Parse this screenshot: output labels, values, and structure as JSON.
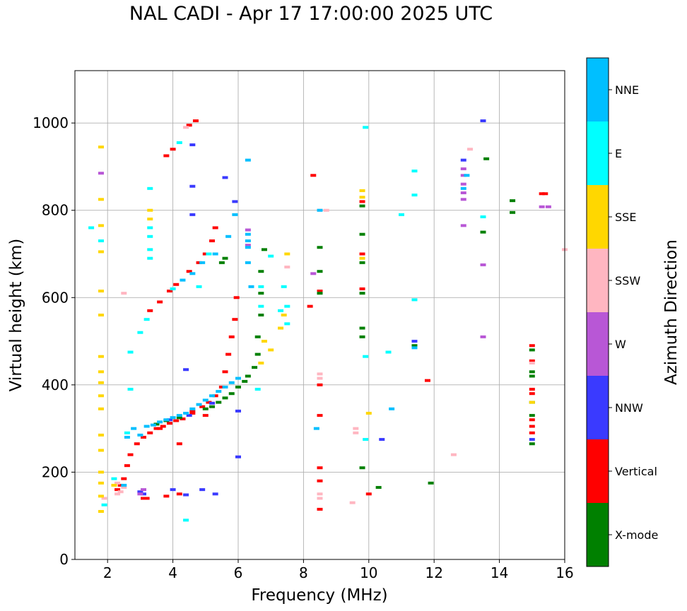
{
  "chart_data": {
    "type": "scatter",
    "title": "NAL CADI - Apr 17 17:00:00 2025 UTC",
    "xlabel": "Frequency (MHz)",
    "ylabel": "Virtual height (km)",
    "xlim": [
      1,
      16
    ],
    "ylim": [
      0,
      1120
    ],
    "xticks": [
      2,
      4,
      6,
      8,
      10,
      12,
      14,
      16
    ],
    "yticks": [
      0,
      200,
      400,
      600,
      800,
      1000
    ],
    "grid": true,
    "colorbar": {
      "label": "Azimuth Direction",
      "categories": [
        {
          "name": "X-mode",
          "color": "#008000"
        },
        {
          "name": "Vertical",
          "color": "#ff0000"
        },
        {
          "name": "NNW",
          "color": "#3a3aff"
        },
        {
          "name": "W",
          "color": "#b857d6"
        },
        {
          "name": "SSW",
          "color": "#ffb6c1"
        },
        {
          "name": "SSE",
          "color": "#ffd700"
        },
        {
          "name": "E",
          "color": "#00ffff"
        },
        {
          "name": "NNE",
          "color": "#00bfff"
        }
      ]
    },
    "series": [
      {
        "name": "Vertical",
        "color": "#ff0000",
        "points": [
          [
            2.3,
            160
          ],
          [
            2.4,
            170
          ],
          [
            2.5,
            185
          ],
          [
            2.6,
            215
          ],
          [
            2.7,
            240
          ],
          [
            2.9,
            265
          ],
          [
            3.1,
            280
          ],
          [
            3.3,
            290
          ],
          [
            3.5,
            300
          ],
          [
            3.7,
            305
          ],
          [
            3.9,
            312
          ],
          [
            4.1,
            318
          ],
          [
            4.3,
            322
          ],
          [
            4.6,
            335
          ],
          [
            4.9,
            350
          ],
          [
            5.1,
            360
          ],
          [
            5.3,
            375
          ],
          [
            5.5,
            395
          ],
          [
            5.6,
            430
          ],
          [
            5.7,
            470
          ],
          [
            5.8,
            510
          ],
          [
            5.9,
            550
          ],
          [
            5.95,
            600
          ],
          [
            3.1,
            140
          ],
          [
            3.2,
            140
          ],
          [
            3.8,
            145
          ],
          [
            4.2,
            150
          ],
          [
            3.3,
            570
          ],
          [
            3.6,
            590
          ],
          [
            3.9,
            615
          ],
          [
            4.1,
            630
          ],
          [
            4.5,
            660
          ],
          [
            4.8,
            680
          ],
          [
            5.0,
            700
          ],
          [
            5.2,
            730
          ],
          [
            5.3,
            760
          ],
          [
            3.8,
            925
          ],
          [
            4.0,
            940
          ],
          [
            4.5,
            995
          ],
          [
            4.7,
            1005
          ],
          [
            8.2,
            580
          ],
          [
            8.3,
            880
          ],
          [
            8.5,
            615
          ],
          [
            8.5,
            400
          ],
          [
            8.5,
            330
          ],
          [
            8.5,
            210
          ],
          [
            8.5,
            180
          ],
          [
            8.5,
            115
          ],
          [
            9.8,
            820
          ],
          [
            9.8,
            700
          ],
          [
            9.8,
            620
          ],
          [
            10.0,
            150
          ],
          [
            11.8,
            410
          ],
          [
            15.0,
            490
          ],
          [
            15.0,
            455
          ],
          [
            15.0,
            390
          ],
          [
            15.0,
            380
          ],
          [
            15.0,
            320
          ],
          [
            15.0,
            305
          ],
          [
            15.0,
            290
          ],
          [
            15.3,
            838
          ],
          [
            15.4,
            838
          ],
          [
            4.2,
            265
          ],
          [
            3.6,
            300
          ],
          [
            4.6,
            340
          ],
          [
            5.0,
            330
          ]
        ]
      },
      {
        "name": "X-mode",
        "color": "#008000",
        "points": [
          [
            5.0,
            345
          ],
          [
            5.2,
            350
          ],
          [
            5.4,
            360
          ],
          [
            5.6,
            370
          ],
          [
            5.8,
            380
          ],
          [
            6.0,
            395
          ],
          [
            6.2,
            408
          ],
          [
            6.3,
            420
          ],
          [
            6.5,
            440
          ],
          [
            6.6,
            470
          ],
          [
            6.6,
            510
          ],
          [
            6.7,
            560
          ],
          [
            6.7,
            610
          ],
          [
            6.7,
            660
          ],
          [
            6.8,
            710
          ],
          [
            3.5,
            310
          ],
          [
            3.8,
            318
          ],
          [
            4.2,
            325
          ],
          [
            8.5,
            660
          ],
          [
            8.5,
            715
          ],
          [
            8.5,
            610
          ],
          [
            9.8,
            810
          ],
          [
            9.8,
            745
          ],
          [
            9.8,
            680
          ],
          [
            9.8,
            610
          ],
          [
            9.8,
            530
          ],
          [
            9.8,
            510
          ],
          [
            9.8,
            210
          ],
          [
            10.3,
            165
          ],
          [
            11.4,
            490
          ],
          [
            11.9,
            175
          ],
          [
            13.5,
            750
          ],
          [
            13.6,
            918
          ],
          [
            14.4,
            822
          ],
          [
            14.4,
            795
          ],
          [
            15.0,
            480
          ],
          [
            15.0,
            430
          ],
          [
            15.0,
            420
          ],
          [
            15.0,
            360
          ],
          [
            15.0,
            330
          ],
          [
            15.0,
            265
          ],
          [
            5.5,
            680
          ],
          [
            5.6,
            690
          ]
        ]
      },
      {
        "name": "NNW",
        "color": "#3a3aff",
        "points": [
          [
            3.0,
            155
          ],
          [
            3.1,
            150
          ],
          [
            4.0,
            160
          ],
          [
            4.4,
            148
          ],
          [
            4.9,
            160
          ],
          [
            5.3,
            150
          ],
          [
            4.4,
            435
          ],
          [
            4.6,
            790
          ],
          [
            4.6,
            855
          ],
          [
            4.6,
            950
          ],
          [
            5.6,
            875
          ],
          [
            5.9,
            820
          ],
          [
            6.0,
            235
          ],
          [
            6.0,
            340
          ],
          [
            10.4,
            275
          ],
          [
            13.5,
            1005
          ],
          [
            12.9,
            915
          ],
          [
            11.4,
            500
          ],
          [
            15.0,
            275
          ],
          [
            3.9,
            320
          ],
          [
            4.5,
            330
          ],
          [
            5.2,
            358
          ]
        ]
      },
      {
        "name": "W",
        "color": "#b857d6",
        "points": [
          [
            3.0,
            150
          ],
          [
            3.1,
            160
          ],
          [
            6.3,
            720
          ],
          [
            6.3,
            755
          ],
          [
            8.3,
            655
          ],
          [
            12.9,
            895
          ],
          [
            12.9,
            880
          ],
          [
            12.9,
            860
          ],
          [
            12.9,
            840
          ],
          [
            12.9,
            825
          ],
          [
            12.9,
            765
          ],
          [
            13.5,
            675
          ],
          [
            13.5,
            510
          ],
          [
            15.3,
            808
          ],
          [
            15.5,
            808
          ],
          [
            1.8,
            885
          ]
        ]
      },
      {
        "name": "SSW",
        "color": "#ffb6c1",
        "points": [
          [
            2.3,
            150
          ],
          [
            2.4,
            155
          ],
          [
            2.5,
            165
          ],
          [
            2.3,
            175
          ],
          [
            1.9,
            140
          ],
          [
            8.5,
            425
          ],
          [
            8.5,
            415
          ],
          [
            8.5,
            150
          ],
          [
            8.5,
            140
          ],
          [
            8.5,
            800
          ],
          [
            8.7,
            800
          ],
          [
            9.5,
            130
          ],
          [
            9.6,
            300
          ],
          [
            9.6,
            290
          ],
          [
            12.6,
            240
          ],
          [
            13.1,
            940
          ],
          [
            16.0,
            710
          ],
          [
            15.0,
            450
          ],
          [
            2.5,
            610
          ],
          [
            4.4,
            990
          ],
          [
            7.5,
            670
          ]
        ]
      },
      {
        "name": "SSE",
        "color": "#ffd700",
        "points": [
          [
            1.8,
            945
          ],
          [
            1.8,
            825
          ],
          [
            1.8,
            765
          ],
          [
            1.8,
            705
          ],
          [
            1.8,
            615
          ],
          [
            1.8,
            560
          ],
          [
            1.8,
            465
          ],
          [
            1.8,
            430
          ],
          [
            1.8,
            405
          ],
          [
            1.8,
            375
          ],
          [
            1.8,
            345
          ],
          [
            1.8,
            285
          ],
          [
            1.8,
            250
          ],
          [
            1.8,
            200
          ],
          [
            1.8,
            175
          ],
          [
            1.8,
            145
          ],
          [
            1.8,
            110
          ],
          [
            2.2,
            170
          ],
          [
            3.3,
            800
          ],
          [
            3.3,
            780
          ],
          [
            6.7,
            450
          ],
          [
            6.8,
            500
          ],
          [
            7.0,
            480
          ],
          [
            7.3,
            530
          ],
          [
            7.4,
            560
          ],
          [
            7.5,
            700
          ],
          [
            9.8,
            845
          ],
          [
            9.8,
            830
          ],
          [
            9.8,
            690
          ],
          [
            10.0,
            335
          ],
          [
            15.0,
            360
          ]
        ]
      },
      {
        "name": "E",
        "color": "#00ffff",
        "points": [
          [
            1.5,
            760
          ],
          [
            1.8,
            730
          ],
          [
            1.9,
            125
          ],
          [
            2.2,
            185
          ],
          [
            2.6,
            290
          ],
          [
            2.7,
            390
          ],
          [
            2.7,
            475
          ],
          [
            3.0,
            520
          ],
          [
            3.2,
            550
          ],
          [
            3.3,
            690
          ],
          [
            3.3,
            710
          ],
          [
            3.3,
            740
          ],
          [
            3.3,
            760
          ],
          [
            3.3,
            850
          ],
          [
            4.0,
            620
          ],
          [
            4.2,
            955
          ],
          [
            4.8,
            625
          ],
          [
            5.1,
            700
          ],
          [
            6.6,
            390
          ],
          [
            6.7,
            580
          ],
          [
            6.7,
            625
          ],
          [
            7.0,
            695
          ],
          [
            7.3,
            570
          ],
          [
            7.4,
            625
          ],
          [
            7.5,
            580
          ],
          [
            7.5,
            540
          ],
          [
            9.9,
            465
          ],
          [
            9.9,
            275
          ],
          [
            9.9,
            990
          ],
          [
            10.6,
            475
          ],
          [
            11.0,
            790
          ],
          [
            11.4,
            890
          ],
          [
            11.4,
            595
          ],
          [
            11.4,
            835
          ],
          [
            13.5,
            785
          ],
          [
            4.4,
            90
          ]
        ]
      },
      {
        "name": "NNE",
        "color": "#00bfff",
        "points": [
          [
            2.5,
            170
          ],
          [
            2.6,
            280
          ],
          [
            2.8,
            300
          ],
          [
            3.0,
            285
          ],
          [
            3.2,
            305
          ],
          [
            3.4,
            308
          ],
          [
            3.6,
            315
          ],
          [
            3.8,
            320
          ],
          [
            4.0,
            325
          ],
          [
            4.2,
            330
          ],
          [
            4.4,
            335
          ],
          [
            4.6,
            345
          ],
          [
            4.8,
            355
          ],
          [
            5.0,
            365
          ],
          [
            5.2,
            375
          ],
          [
            5.4,
            385
          ],
          [
            5.6,
            395
          ],
          [
            5.8,
            405
          ],
          [
            6.0,
            415
          ],
          [
            4.3,
            640
          ],
          [
            4.6,
            655
          ],
          [
            4.9,
            680
          ],
          [
            5.3,
            700
          ],
          [
            5.7,
            740
          ],
          [
            5.9,
            790
          ],
          [
            6.3,
            745
          ],
          [
            6.3,
            730
          ],
          [
            6.3,
            715
          ],
          [
            6.3,
            915
          ],
          [
            6.4,
            625
          ],
          [
            6.3,
            680
          ],
          [
            8.5,
            800
          ],
          [
            8.4,
            300
          ],
          [
            10.7,
            345
          ],
          [
            11.4,
            485
          ],
          [
            12.9,
            850
          ],
          [
            13.0,
            880
          ]
        ]
      }
    ]
  }
}
